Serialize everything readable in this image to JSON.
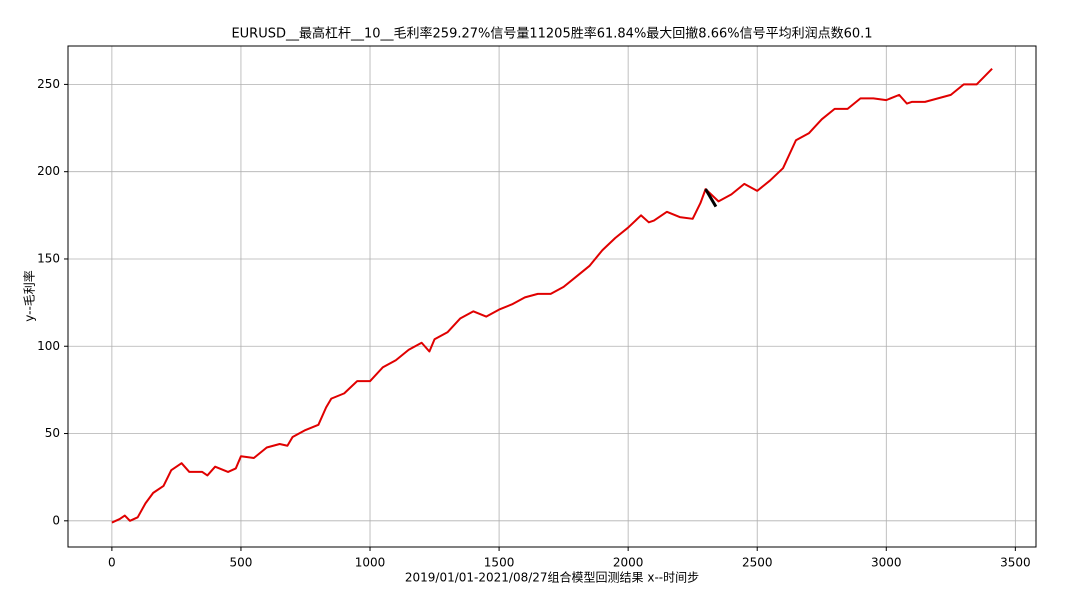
{
  "chart_data": {
    "type": "line",
    "title": "EURUSD__最高杠杆__10__毛利率259.27%信号量11205胜率61.84%最大回撤8.66%信号平均利润点数60.1",
    "xlabel": "2019/01/01-2021/08/27组合模型回测结果 x--时间步",
    "ylabel": "y--毛利率",
    "xlim": [
      -170,
      3580
    ],
    "ylim": [
      -15,
      272
    ],
    "xticks": [
      0,
      500,
      1000,
      1500,
      2000,
      2500,
      3000,
      3500
    ],
    "yticks": [
      0,
      50,
      100,
      150,
      200,
      250
    ],
    "grid": true,
    "series": [
      {
        "color": "#e00000",
        "x": [
          0,
          30,
          50,
          70,
          100,
          130,
          160,
          200,
          230,
          270,
          300,
          350,
          370,
          400,
          450,
          480,
          500,
          550,
          600,
          650,
          680,
          700,
          750,
          800,
          830,
          850,
          900,
          950,
          1000,
          1050,
          1100,
          1150,
          1200,
          1230,
          1250,
          1300,
          1350,
          1400,
          1450,
          1500,
          1550,
          1600,
          1650,
          1700,
          1750,
          1800,
          1850,
          1900,
          1950,
          2000,
          2050,
          2080,
          2100,
          2150,
          2200,
          2250,
          2280,
          2300,
          2350,
          2400,
          2450,
          2500,
          2550,
          2600,
          2650,
          2700,
          2750,
          2800,
          2850,
          2900,
          2950,
          3000,
          3050,
          3080,
          3100,
          3150,
          3200,
          3250,
          3300,
          3350,
          3410
        ],
        "values": [
          -1,
          1,
          3,
          0,
          2,
          10,
          16,
          20,
          29,
          33,
          28,
          28,
          26,
          31,
          28,
          30,
          37,
          36,
          42,
          44,
          43,
          48,
          52,
          55,
          65,
          70,
          73,
          80,
          80,
          88,
          92,
          98,
          102,
          97,
          104,
          108,
          116,
          120,
          117,
          121,
          124,
          128,
          130,
          130,
          134,
          140,
          146,
          155,
          162,
          168,
          175,
          171,
          172,
          177,
          174,
          173,
          182,
          190,
          183,
          187,
          193,
          189,
          195,
          202,
          218,
          222,
          230,
          236,
          236,
          242,
          242,
          241,
          244,
          239,
          240,
          240,
          242,
          244,
          250,
          250,
          259
        ]
      },
      {
        "color": "#000000",
        "x": [
          2300,
          2340
        ],
        "values": [
          190,
          180
        ]
      }
    ]
  }
}
